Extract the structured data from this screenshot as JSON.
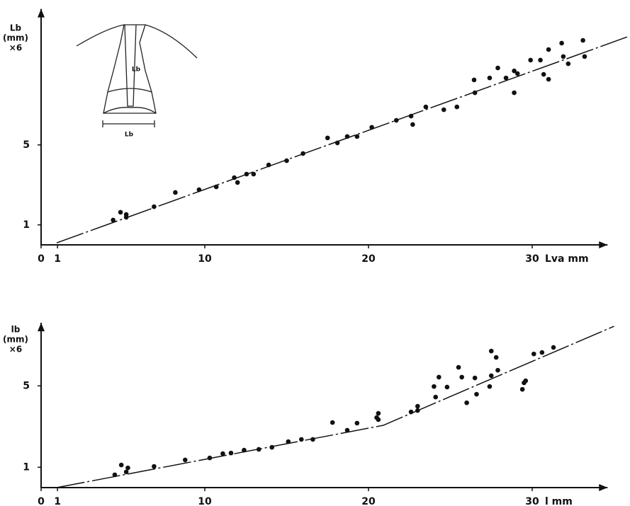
{
  "chart_data": [
    {
      "type": "scatter",
      "ylabel": [
        "Lb",
        "(mm)",
        "×6"
      ],
      "xlabel": "Lva mm",
      "annotations": [
        "Lb",
        "Lb"
      ],
      "xlim": [
        0,
        34.6
      ],
      "ylim": [
        0,
        11.8
      ],
      "xticks": [
        0,
        1,
        10,
        20,
        30
      ],
      "yticks": [
        1,
        5
      ],
      "color": "#111",
      "points": {
        "x": [
          4.4,
          4.85,
          5.2,
          5.2,
          6.9,
          8.2,
          9.65,
          10.7,
          11.8,
          12.0,
          12.55,
          12.98,
          13.9,
          15.0,
          16.0,
          17.5,
          18.1,
          18.7,
          19.3,
          20.2,
          21.7,
          22.6,
          22.7,
          23.5,
          24.6,
          25.4,
          26.45,
          26.5,
          27.4,
          27.9,
          28.4,
          28.9,
          29.1,
          28.9,
          29.9,
          30.5,
          30.7,
          31.0,
          31.0,
          31.8,
          31.9,
          32.2,
          33.1,
          33.2
        ],
        "y": [
          1.24,
          1.63,
          1.52,
          1.38,
          1.91,
          2.62,
          2.76,
          2.9,
          3.36,
          3.12,
          3.54,
          3.54,
          4.0,
          4.21,
          4.57,
          5.35,
          5.1,
          5.42,
          5.42,
          5.88,
          6.23,
          6.44,
          6.02,
          6.9,
          6.76,
          6.9,
          8.25,
          7.61,
          8.35,
          8.85,
          8.35,
          8.7,
          8.57,
          7.61,
          9.24,
          9.24,
          8.53,
          8.28,
          9.77,
          10.09,
          9.42,
          9.06,
          10.23,
          9.42
        ]
      },
      "fit_line": {
        "x": [
          0.95,
          35.8
        ],
        "y": [
          0.1,
          10.4
        ]
      }
    },
    {
      "type": "scatter",
      "ylabel": [
        "lb",
        "(mm)",
        "×6"
      ],
      "xlabel": "l mm",
      "xlim": [
        0,
        34.6
      ],
      "ylim": [
        0,
        8.1
      ],
      "xticks": [
        0,
        1,
        10,
        20,
        30
      ],
      "yticks": [
        1,
        5
      ],
      "color": "#111",
      "points": {
        "x": [
          4.5,
          4.9,
          5.3,
          5.2,
          6.9,
          8.8,
          10.3,
          11.1,
          11.6,
          12.4,
          13.3,
          14.1,
          15.1,
          15.9,
          16.6,
          17.8,
          18.7,
          19.3,
          20.5,
          20.6,
          20.6,
          22.6,
          23.0,
          23.0,
          24.0,
          24.3,
          24.1,
          24.8,
          25.5,
          25.7,
          26.0,
          26.5,
          26.6,
          27.4,
          27.5,
          27.5,
          27.8,
          27.9,
          29.4,
          29.5,
          29.6,
          30.1,
          30.6,
          31.3
        ],
        "y": [
          0.63,
          1.11,
          0.97,
          0.77,
          1.04,
          1.36,
          1.46,
          1.67,
          1.7,
          1.84,
          1.88,
          1.98,
          2.26,
          2.37,
          2.37,
          3.2,
          2.82,
          3.17,
          3.44,
          3.65,
          3.34,
          3.72,
          4.0,
          3.79,
          4.97,
          5.43,
          4.45,
          4.94,
          5.91,
          5.43,
          4.17,
          5.39,
          4.59,
          4.97,
          5.5,
          6.71,
          6.4,
          5.77,
          4.83,
          5.15,
          5.25,
          6.57,
          6.64,
          6.89
        ]
      },
      "fit_line": {
        "x": [
          0.95,
          20.9,
          35.0
        ],
        "y": [
          0,
          3.06,
          7.93
        ]
      }
    }
  ]
}
